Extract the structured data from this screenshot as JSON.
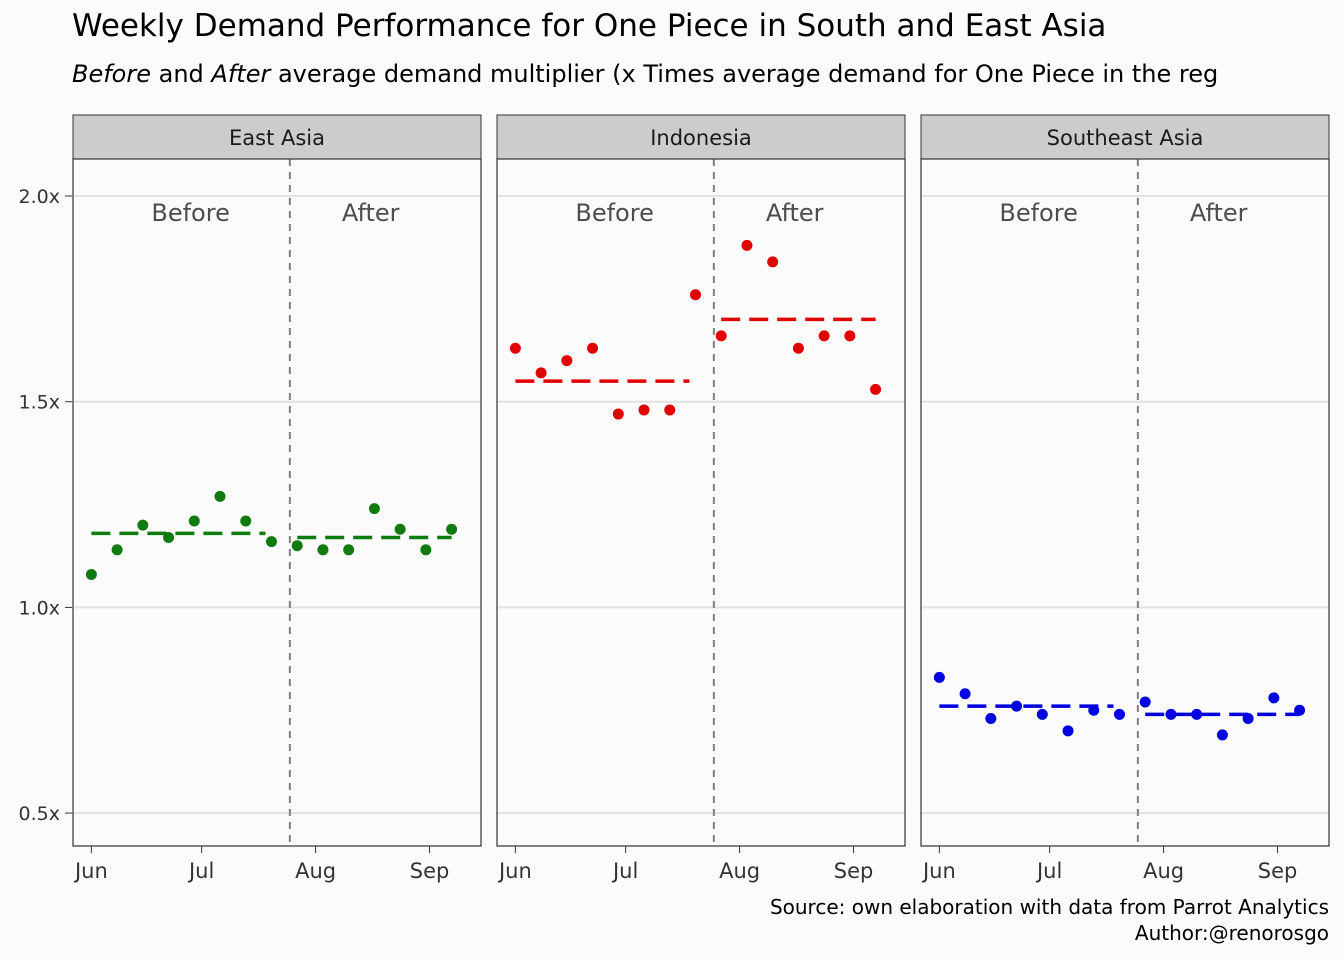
{
  "title": "Weekly Demand Performance for One Piece in South and East Asia",
  "subtitle": {
    "before_word": "Before",
    "and_word": " and ",
    "after_word": "After",
    "rest": " average demand multiplier (x Times average demand for One Piece in the reg"
  },
  "caption": {
    "source": "Source: own elaboration with data from Parrot Analytics",
    "author": "Author:@renorosgo"
  },
  "chart_data": {
    "type": "scatter",
    "facet_by": "region",
    "ylim": [
      0.42,
      2.09
    ],
    "y_ticks": [
      0.5,
      1.0,
      1.5,
      2.0
    ],
    "y_tick_labels": [
      "0.5x",
      "1.0x",
      "1.5x",
      "2.0x"
    ],
    "x_ticks": [
      "2021-06-01",
      "2021-07-01",
      "2021-08-01",
      "2021-09-01"
    ],
    "x_tick_labels": [
      "Jun",
      "Jul",
      "Aug",
      "Sep"
    ],
    "xlim": [
      "2021-05-27",
      "2021-09-15"
    ],
    "split_date": "2021-07-25",
    "period_labels": {
      "before": "Before",
      "after": "After"
    },
    "grid": true,
    "panels": [
      {
        "name": "East Asia",
        "color": "#0f7b0f",
        "dates": [
          "2021-06-01",
          "2021-06-08",
          "2021-06-15",
          "2021-06-22",
          "2021-06-29",
          "2021-07-06",
          "2021-07-13",
          "2021-07-20",
          "2021-07-27",
          "2021-08-03",
          "2021-08-10",
          "2021-08-17",
          "2021-08-24",
          "2021-08-31",
          "2021-09-07"
        ],
        "values": [
          1.08,
          1.14,
          1.2,
          1.17,
          1.21,
          1.27,
          1.21,
          1.16,
          1.15,
          1.14,
          1.14,
          1.24,
          1.19,
          1.14,
          1.19
        ],
        "before_mean": 1.18,
        "after_mean": 1.17
      },
      {
        "name": "Indonesia",
        "color": "#e00000",
        "dates": [
          "2021-06-01",
          "2021-06-08",
          "2021-06-15",
          "2021-06-22",
          "2021-06-29",
          "2021-07-06",
          "2021-07-13",
          "2021-07-20",
          "2021-07-27",
          "2021-08-03",
          "2021-08-10",
          "2021-08-17",
          "2021-08-24",
          "2021-08-31",
          "2021-09-07"
        ],
        "values": [
          1.63,
          1.57,
          1.6,
          1.63,
          1.47,
          1.48,
          1.48,
          1.76,
          1.66,
          1.88,
          1.84,
          1.63,
          1.66,
          1.66,
          1.53
        ],
        "before_mean": 1.55,
        "after_mean": 1.7
      },
      {
        "name": "Southeast Asia",
        "color": "#0000e0",
        "dates": [
          "2021-06-01",
          "2021-06-08",
          "2021-06-15",
          "2021-06-22",
          "2021-06-29",
          "2021-07-06",
          "2021-07-13",
          "2021-07-20",
          "2021-07-27",
          "2021-08-03",
          "2021-08-10",
          "2021-08-17",
          "2021-08-24",
          "2021-08-31",
          "2021-09-07"
        ],
        "values": [
          0.83,
          0.79,
          0.73,
          0.76,
          0.74,
          0.7,
          0.75,
          0.74,
          0.77,
          0.74,
          0.74,
          0.69,
          0.73,
          0.78,
          0.75
        ],
        "before_mean": 0.76,
        "after_mean": 0.74
      }
    ]
  }
}
